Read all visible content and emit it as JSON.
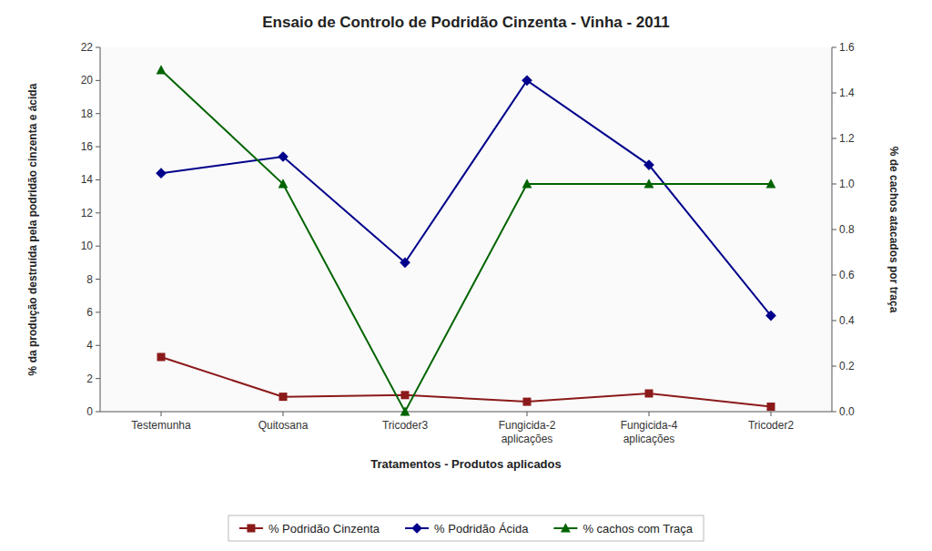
{
  "chart_data": {
    "type": "line",
    "title": "Ensaio de Controlo de Podridão Cinzenta - Vinha - 2011",
    "x_label": "Tratamentos - Produtos aplicados",
    "y_label": "% da produção destruída pela podridão cinzenta e ácida",
    "y2_label": "% de cachos atacados por traça",
    "categories": [
      "Testemunha",
      "Quitosana",
      "Tricoder3",
      "Fungicida-2\naplicações",
      "Fungicida-4\naplicações",
      "Tricoder2"
    ],
    "series": [
      {
        "name": "% Podridão Cinzenta",
        "color": "#8B1A1A",
        "marker": "square",
        "values": [
          3.3,
          0.9,
          1.0,
          0.6,
          1.1,
          0.3
        ]
      },
      {
        "name": "% Podridão Ácida",
        "color": "#00008B",
        "marker": "diamond",
        "values": [
          14.4,
          15.4,
          9.0,
          20.0,
          14.9,
          5.8
        ]
      },
      {
        "name": "% cachos com Traça",
        "color": "#006400",
        "marker": "triangle",
        "axis": "y2",
        "values": [
          1.5,
          1.0,
          0.0,
          1.0,
          1.0,
          1.0
        ]
      }
    ],
    "ylim": [
      0,
      22
    ],
    "yticks": [
      0,
      2,
      4,
      6,
      8,
      10,
      12,
      14,
      16,
      18,
      20,
      22
    ],
    "y2lim": [
      0,
      1.6
    ],
    "y2ticks": [
      {
        "value": 0,
        "label": "0.0"
      },
      0.2,
      0.4,
      0.6,
      0.8,
      {
        "value": 1.0,
        "label": "1.0"
      },
      1.2,
      1.4,
      1.6
    ],
    "grid": false,
    "legend": "bottom"
  }
}
